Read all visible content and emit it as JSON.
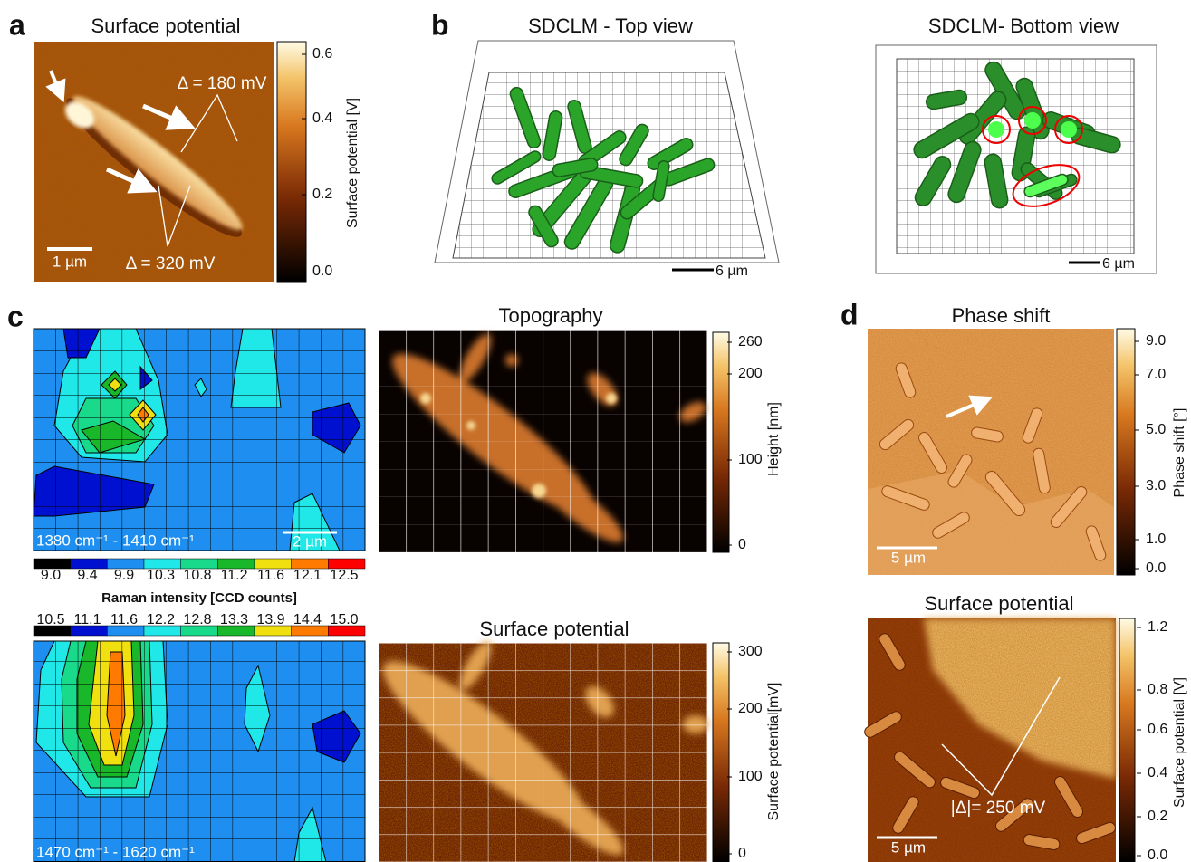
{
  "panel_a": {
    "label": "a",
    "title": "Surface potential",
    "annotations": [
      "Δ = 180 mV",
      "Δ = 320 mV"
    ],
    "scale_bar": "1 µm",
    "colorbar": {
      "label": "Surface potential [V]",
      "ticks": [
        "0.6",
        "0.4",
        "0.2",
        "0.0"
      ]
    }
  },
  "panel_b": {
    "label": "b",
    "top": {
      "title": "SDCLM - Top view",
      "scale_bar": "6 µm"
    },
    "bottom": {
      "title": "SDCLM- Bottom view",
      "scale_bar": "6 µm"
    }
  },
  "panel_c": {
    "label": "c",
    "raman_top": {
      "range": "1380 cm⁻¹ - 1410 cm⁻¹",
      "scale_bar": "2 µm",
      "colorbar_ticks": [
        "9.0",
        "9.4",
        "9.9",
        "10.3",
        "10.8",
        "11.2",
        "11.6",
        "12.1",
        "12.5"
      ]
    },
    "raman_label": "Raman intensity [CCD counts]",
    "raman_bottom": {
      "range": "1470 cm⁻¹ - 1620 cm⁻¹",
      "colorbar_ticks": [
        "10.5",
        "11.1",
        "11.6",
        "12.2",
        "12.8",
        "13.3",
        "13.9",
        "14.4",
        "15.0"
      ]
    },
    "topography": {
      "title": "Topography",
      "colorbar": {
        "label": "Height [nm]",
        "ticks": [
          "260",
          "200",
          "100",
          "0"
        ]
      }
    },
    "surface_potential": {
      "title": "Surface potential",
      "colorbar": {
        "label": "Surface potential[mV]",
        "ticks": [
          "300",
          "200",
          "100",
          "0"
        ]
      }
    }
  },
  "panel_d": {
    "label": "d",
    "phase_shift": {
      "title": "Phase shift",
      "scale_bar": "5 µm",
      "colorbar": {
        "label": "Phase shift [°]",
        "ticks": [
          "9.0",
          "7.0",
          "5.0",
          "3.0",
          "1.0",
          "0.0"
        ]
      }
    },
    "surface_potential": {
      "title": "Surface potential",
      "annotation": "|Δ|= 250 mV",
      "scale_bar": "5 µm",
      "colorbar": {
        "label": "Surface potential [V]",
        "ticks": [
          "1.2",
          "0.8",
          "0.6",
          "0.4",
          "0.2",
          "0.0"
        ]
      }
    }
  }
}
